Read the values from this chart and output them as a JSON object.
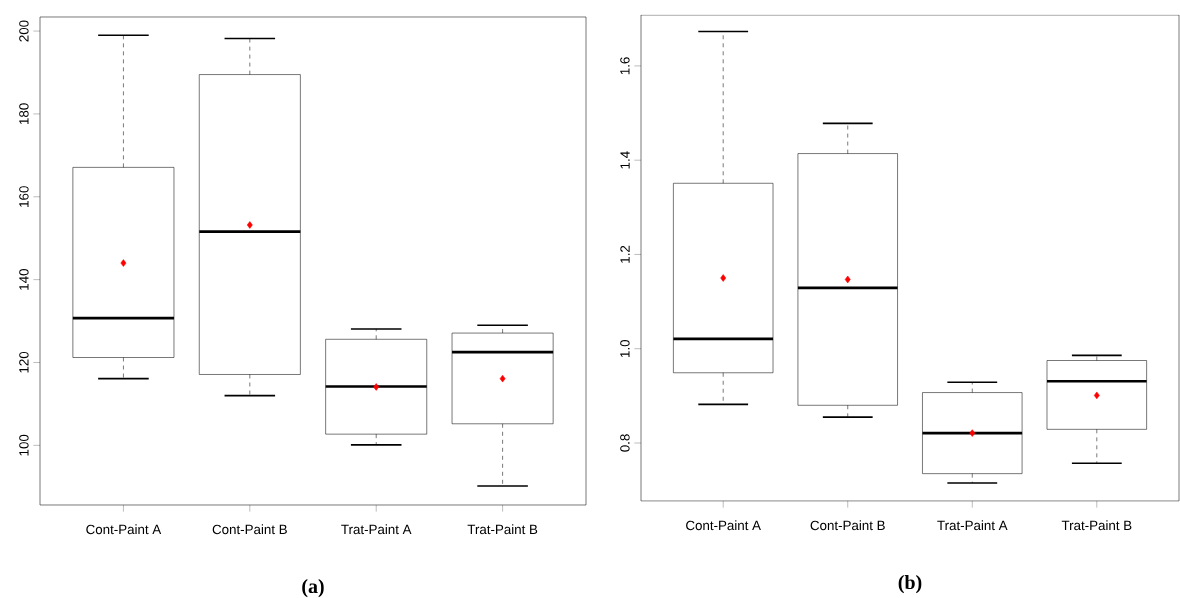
{
  "chart_data": [
    {
      "type": "box",
      "title": "(a)",
      "categories": [
        "Cont-Paint A",
        "Cont-Paint B",
        "Trat-Paint A",
        "Trat-Paint B"
      ],
      "series": [
        {
          "color": "#000000",
          "boxes": [
            {
              "low": 116.1,
              "q1": 121.2,
              "median": 130.7,
              "q3": 167.1,
              "high": 199.0,
              "mean": 144.0
            },
            {
              "low": 112.0,
              "q1": 117.1,
              "median": 151.6,
              "q3": 189.5,
              "high": 198.2,
              "mean": 153.2
            },
            {
              "low": 100.1,
              "q1": 102.7,
              "median": 114.2,
              "q3": 125.6,
              "high": 128.1,
              "mean": 114.1
            },
            {
              "low": 90.2,
              "q1": 105.2,
              "median": 122.5,
              "q3": 127.1,
              "high": 129.0,
              "mean": 116.1
            }
          ]
        }
      ],
      "ylim": [
        85.6,
        203.4
      ],
      "yticks": [
        100,
        120,
        140,
        160,
        180,
        200
      ],
      "grid": false
    },
    {
      "type": "box",
      "title": "(b)",
      "categories": [
        "Cont-Paint A",
        "Cont-Paint B",
        "Trat-Paint A",
        "Trat-Paint B"
      ],
      "series": [
        {
          "color": "#000000",
          "boxes": [
            {
              "low": 0.882,
              "q1": 0.949,
              "median": 1.021,
              "q3": 1.351,
              "high": 1.673,
              "mean": 1.15
            },
            {
              "low": 0.855,
              "q1": 0.88,
              "median": 1.129,
              "q3": 1.414,
              "high": 1.478,
              "mean": 1.147
            },
            {
              "low": 0.715,
              "q1": 0.735,
              "median": 0.821,
              "q3": 0.907,
              "high": 0.929,
              "mean": 0.821
            },
            {
              "low": 0.757,
              "q1": 0.829,
              "median": 0.931,
              "q3": 0.975,
              "high": 0.986,
              "mean": 0.901
            }
          ]
        }
      ],
      "ylim": [
        0.677,
        1.708
      ],
      "yticks": [
        {
          "value": 0.8,
          "label": "0.8"
        },
        {
          "value": 1.0,
          "label": "1.0"
        },
        {
          "value": 1.2,
          "label": "1.2"
        },
        {
          "value": 1.4,
          "label": "1.4"
        },
        {
          "value": 1.6,
          "label": "1.6"
        }
      ],
      "grid": false
    }
  ]
}
